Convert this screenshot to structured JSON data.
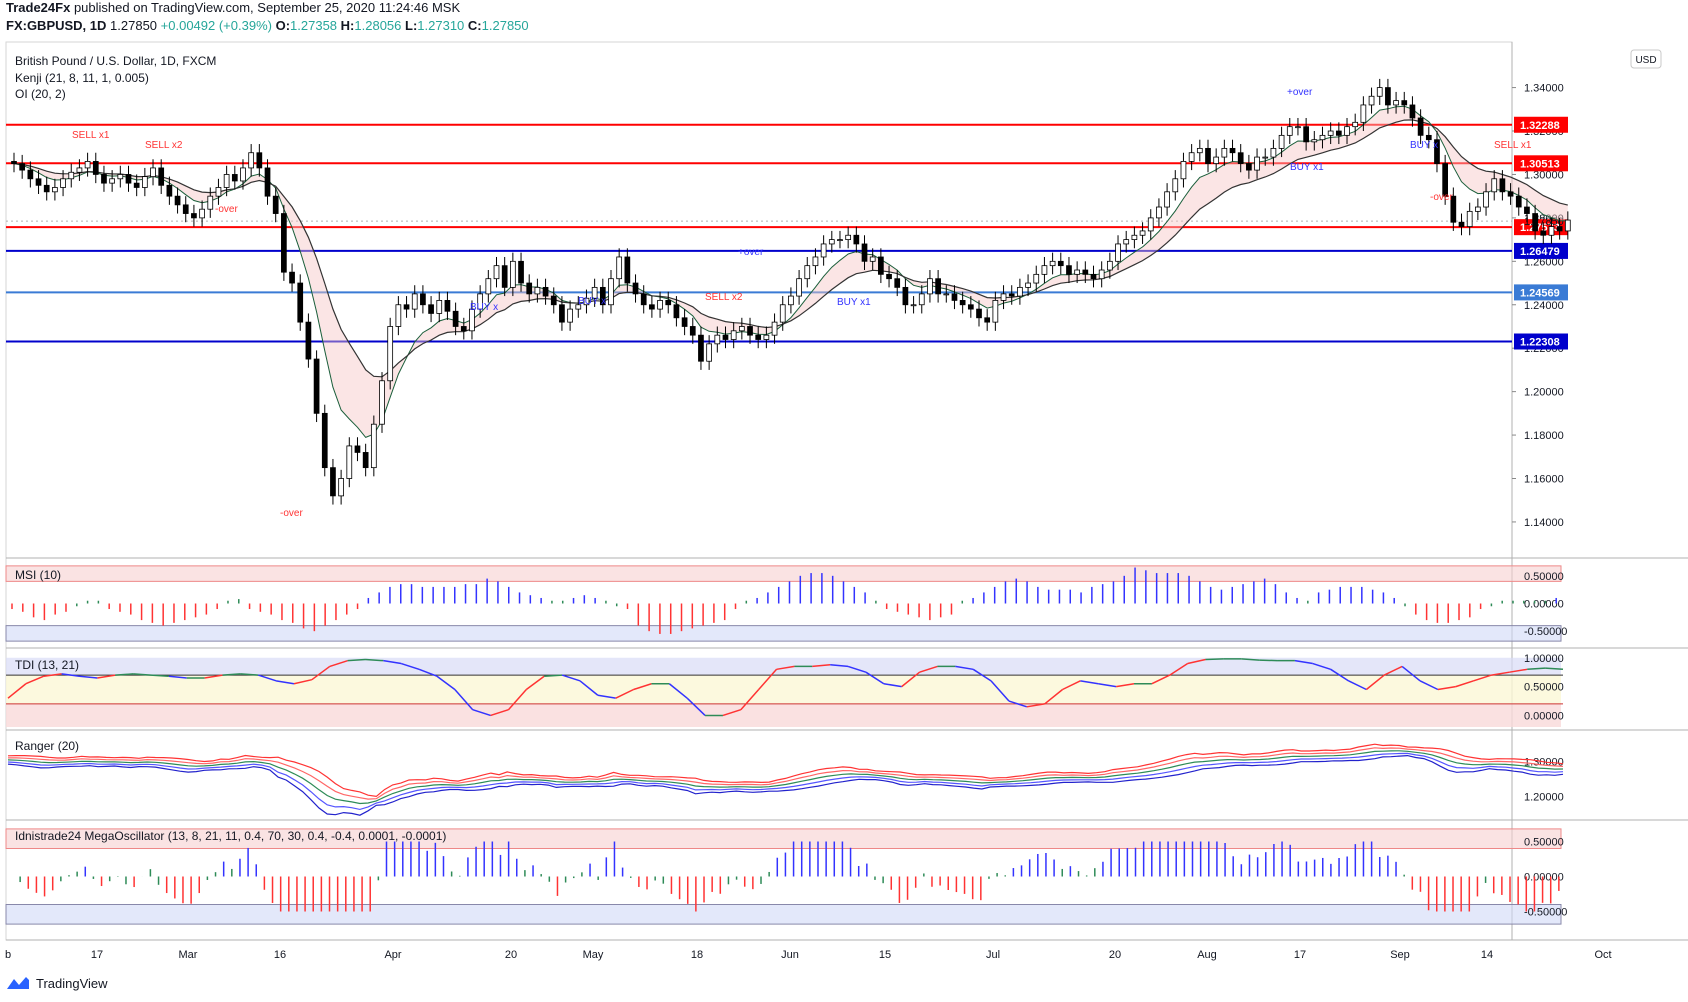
{
  "header": {
    "publisher": "Trade24Fx",
    "published_text": "published on TradingView.com, September 25, 2020 11:24:46 MSK",
    "symbol": "FX:GBPUSD, 1D",
    "last": "1.27850",
    "change": "+0.00492 (+0.39%)",
    "o_label": "O:",
    "o": "1.27358",
    "h_label": "H:",
    "h": "1.28056",
    "l_label": "L:",
    "l": "1.27310",
    "c_label": "C:",
    "c": "1.27850"
  },
  "legend": {
    "title": "British Pound / U.S. Dollar, 1D, FXCM",
    "kenji": "Kenji (21, 8, 11, 1, 0.005)",
    "oi": "OI (20, 2)"
  },
  "currency_badge": "USD",
  "footer": {
    "brand": "TradingView"
  },
  "colors": {
    "up": "#ffffff",
    "down": "#000000",
    "red_line": "#ff0000",
    "blue_line": "#0000cc",
    "light_blue_line": "#3a7bd5",
    "buy_marker": "#3333ff",
    "sell_marker": "#ff3333"
  },
  "chart_data": [
    {
      "type": "candlestick",
      "title": "British Pound / U.S. Dollar, 1D, FXCM",
      "x_ticks": [
        "b",
        "17",
        "Mar",
        "16",
        "Apr",
        "20",
        "May",
        "18",
        "Jun",
        "15",
        "Jul",
        "20",
        "Aug",
        "17",
        "Sep",
        "14",
        "Oct"
      ],
      "y_ticks": [
        "1.34000",
        "1.32000",
        "1.30000",
        "1.28000",
        "1.26000",
        "1.24000",
        "1.22000",
        "1.20000",
        "1.18000",
        "1.16000",
        "1.14000"
      ],
      "ylim": [
        1.128,
        1.355
      ],
      "levels": [
        {
          "value": 1.32288,
          "label": "1.32288",
          "color": "#ff0000"
        },
        {
          "value": 1.30513,
          "label": "1.30513",
          "color": "#ff0000"
        },
        {
          "value": 1.27573,
          "label": "1.27573",
          "color": "#ff0000"
        },
        {
          "value": 1.26479,
          "label": "1.26479",
          "color": "#0000cc"
        },
        {
          "value": 1.24569,
          "label": "1.24569",
          "color": "#3a7bd5"
        },
        {
          "value": 1.22308,
          "label": "1.22308",
          "color": "#0000cc"
        }
      ],
      "last_price_label": "1.27850",
      "close": [
        1.305,
        1.302,
        1.298,
        1.295,
        1.292,
        1.294,
        1.298,
        1.301,
        1.303,
        1.306,
        1.3,
        1.296,
        1.298,
        1.3,
        1.296,
        1.294,
        1.299,
        1.303,
        1.295,
        1.29,
        1.286,
        1.282,
        1.28,
        1.284,
        1.29,
        1.294,
        1.3,
        1.297,
        1.303,
        1.31,
        1.303,
        1.29,
        1.282,
        1.255,
        1.25,
        1.232,
        1.215,
        1.19,
        1.165,
        1.152,
        1.16,
        1.175,
        1.172,
        1.165,
        1.185,
        1.205,
        1.23,
        1.24,
        1.238,
        1.245,
        1.24,
        1.236,
        1.242,
        1.237,
        1.23,
        1.228,
        1.238,
        1.245,
        1.252,
        1.258,
        1.248,
        1.26,
        1.25,
        1.245,
        1.248,
        1.244,
        1.24,
        1.232,
        1.238,
        1.24,
        1.243,
        1.248,
        1.24,
        1.252,
        1.262,
        1.25,
        1.245,
        1.24,
        1.238,
        1.242,
        1.24,
        1.234,
        1.23,
        1.226,
        1.214,
        1.222,
        1.226,
        1.224,
        1.228,
        1.23,
        1.226,
        1.224,
        1.226,
        1.232,
        1.24,
        1.244,
        1.252,
        1.258,
        1.262,
        1.268,
        1.27,
        1.27,
        1.272,
        1.268,
        1.26,
        1.262,
        1.254,
        1.252,
        1.248,
        1.24,
        1.24,
        1.245,
        1.252,
        1.245,
        1.245,
        1.242,
        1.24,
        1.238,
        1.234,
        1.232,
        1.242,
        1.245,
        1.244,
        1.248,
        1.25,
        1.254,
        1.258,
        1.26,
        1.258,
        1.254,
        1.256,
        1.254,
        1.252,
        1.256,
        1.26,
        1.268,
        1.27,
        1.272,
        1.274,
        1.28,
        1.285,
        1.292,
        1.298,
        1.306,
        1.31,
        1.312,
        1.305,
        1.308,
        1.312,
        1.31,
        1.305,
        1.302,
        1.308,
        1.308,
        1.312,
        1.318,
        1.322,
        1.322,
        1.315,
        1.316,
        1.318,
        1.32,
        1.318,
        1.322,
        1.324,
        1.332,
        1.336,
        1.34,
        1.332,
        1.334,
        1.332,
        1.326,
        1.318,
        1.316,
        1.305,
        1.29,
        1.278,
        1.276,
        1.283,
        1.285,
        1.292,
        1.298,
        1.292,
        1.29,
        1.285,
        1.282,
        1.274,
        1.272,
        1.276,
        1.274,
        1.279
      ],
      "open": [
        1.306,
        1.305,
        1.302,
        1.298,
        1.295,
        1.292,
        1.294,
        1.298,
        1.301,
        1.303,
        1.306,
        1.3,
        1.296,
        1.298,
        1.3,
        1.296,
        1.294,
        1.299,
        1.303,
        1.295,
        1.29,
        1.286,
        1.282,
        1.28,
        1.284,
        1.29,
        1.294,
        1.3,
        1.297,
        1.303,
        1.31,
        1.303,
        1.29,
        1.282,
        1.255,
        1.25,
        1.232,
        1.215,
        1.19,
        1.165,
        1.152,
        1.16,
        1.175,
        1.172,
        1.165,
        1.185,
        1.205,
        1.23,
        1.24,
        1.238,
        1.245,
        1.24,
        1.236,
        1.242,
        1.237,
        1.23,
        1.228,
        1.238,
        1.245,
        1.252,
        1.258,
        1.248,
        1.26,
        1.25,
        1.245,
        1.248,
        1.244,
        1.24,
        1.232,
        1.238,
        1.24,
        1.243,
        1.248,
        1.24,
        1.252,
        1.262,
        1.25,
        1.245,
        1.24,
        1.238,
        1.242,
        1.24,
        1.234,
        1.23,
        1.226,
        1.214,
        1.222,
        1.226,
        1.224,
        1.228,
        1.23,
        1.226,
        1.224,
        1.226,
        1.232,
        1.24,
        1.244,
        1.252,
        1.258,
        1.262,
        1.268,
        1.27,
        1.27,
        1.272,
        1.268,
        1.26,
        1.262,
        1.254,
        1.252,
        1.248,
        1.24,
        1.24,
        1.245,
        1.252,
        1.245,
        1.245,
        1.242,
        1.24,
        1.238,
        1.234,
        1.232,
        1.242,
        1.245,
        1.244,
        1.248,
        1.25,
        1.254,
        1.258,
        1.26,
        1.258,
        1.254,
        1.256,
        1.254,
        1.252,
        1.256,
        1.26,
        1.268,
        1.27,
        1.272,
        1.274,
        1.28,
        1.285,
        1.292,
        1.298,
        1.306,
        1.31,
        1.312,
        1.305,
        1.308,
        1.312,
        1.31,
        1.305,
        1.302,
        1.308,
        1.308,
        1.312,
        1.318,
        1.322,
        1.322,
        1.315,
        1.316,
        1.318,
        1.32,
        1.318,
        1.322,
        1.324,
        1.332,
        1.336,
        1.34,
        1.332,
        1.334,
        1.332,
        1.326,
        1.318,
        1.316,
        1.305,
        1.29,
        1.278,
        1.276,
        1.283,
        1.285,
        1.292,
        1.298,
        1.292,
        1.29,
        1.285,
        1.282,
        1.274,
        1.272,
        1.276,
        1.274
      ]
    },
    {
      "type": "bar",
      "title": "MSI (10)",
      "y_ticks": [
        "0.50000",
        "0.00000",
        "-0.50000"
      ],
      "ylim": [
        -0.75,
        0.75
      ],
      "values": [
        -0.1,
        -0.15,
        -0.25,
        -0.3,
        -0.2,
        -0.15,
        -0.05,
        0.05,
        0.05,
        -0.1,
        -0.15,
        -0.2,
        -0.3,
        -0.35,
        -0.4,
        -0.35,
        -0.3,
        -0.25,
        -0.2,
        -0.1,
        0.05,
        0.08,
        -0.1,
        -0.15,
        -0.2,
        -0.3,
        -0.35,
        -0.45,
        -0.5,
        -0.4,
        -0.3,
        -0.2,
        -0.1,
        0.1,
        0.2,
        0.3,
        0.35,
        0.35,
        0.3,
        0.3,
        0.3,
        0.3,
        0.35,
        0.35,
        0.45,
        0.4,
        0.3,
        0.2,
        0.15,
        0.1,
        0.05,
        0.05,
        0.1,
        0.15,
        0.1,
        0.05,
        -0.05,
        -0.1,
        -0.4,
        -0.5,
        -0.55,
        -0.55,
        -0.5,
        -0.45,
        -0.4,
        -0.35,
        -0.3,
        -0.1,
        0.05,
        0.1,
        0.2,
        0.3,
        0.4,
        0.5,
        0.55,
        0.55,
        0.5,
        0.4,
        0.3,
        0.2,
        0.05,
        -0.1,
        -0.15,
        -0.2,
        -0.25,
        -0.3,
        -0.25,
        -0.2,
        0.05,
        0.1,
        0.2,
        0.3,
        0.4,
        0.45,
        0.4,
        0.3,
        0.25,
        0.25,
        0.25,
        0.2,
        0.3,
        0.35,
        0.4,
        0.5,
        0.65,
        0.6,
        0.55,
        0.55,
        0.55,
        0.5,
        0.4,
        0.3,
        0.25,
        0.3,
        0.35,
        0.4,
        0.45,
        0.35,
        0.2,
        0.1,
        0.05,
        0.2,
        0.25,
        0.3,
        0.3,
        0.3,
        0.25,
        0.2,
        0.1,
        -0.05,
        -0.2,
        -0.3,
        -0.35,
        -0.35,
        -0.3,
        -0.25,
        -0.1,
        -0.05,
        0.05,
        0.05,
        0.05,
        0.05,
        0.05,
        0.1
      ]
    },
    {
      "type": "line",
      "title": "TDI (13, 21)",
      "y_ticks": [
        "1.00000",
        "0.50000",
        "0.00000"
      ],
      "ylim": [
        -0.2,
        1.1
      ],
      "series": [
        {
          "values": [
            0.3,
            0.55,
            0.68,
            0.72,
            0.68,
            0.65,
            0.7,
            0.72,
            0.7,
            0.68,
            0.65,
            0.65,
            0.7,
            0.72,
            0.7,
            0.6,
            0.55,
            0.62,
            0.85,
            0.95,
            0.97,
            0.95,
            0.9,
            0.8,
            0.68,
            0.45,
            0.1,
            0.0,
            0.1,
            0.45,
            0.68,
            0.7,
            0.6,
            0.35,
            0.3,
            0.45,
            0.55,
            0.55,
            0.3,
            0.0,
            0.0,
            0.1,
            0.45,
            0.8,
            0.85,
            0.85,
            0.88,
            0.85,
            0.75,
            0.55,
            0.5,
            0.75,
            0.85,
            0.85,
            0.8,
            0.6,
            0.25,
            0.15,
            0.2,
            0.45,
            0.6,
            0.55,
            0.5,
            0.55,
            0.55,
            0.7,
            0.9,
            0.97,
            0.98,
            0.98,
            0.96,
            0.95,
            0.95,
            0.9,
            0.8,
            0.6,
            0.45,
            0.7,
            0.85,
            0.6,
            0.45,
            0.5,
            0.6,
            0.7,
            0.75,
            0.8,
            0.82,
            0.8
          ]
        }
      ]
    },
    {
      "type": "line",
      "title": "Ranger (20)",
      "y_ticks": [
        "1.30000",
        "1.20000"
      ],
      "ylim": [
        1.14,
        1.38
      ]
    },
    {
      "type": "bar",
      "title": "Idnistrade24 MegaOscillator (13, 8, 21, 11, 0.4, 70, 30, 0.4, -0.4, 0.0001, -0.0001)",
      "y_ticks": [
        "0.50000",
        "0.00000",
        "-0.50000"
      ],
      "ylim": [
        -0.75,
        0.75
      ]
    }
  ],
  "annotations": {
    "sell_x1": "SELL x1",
    "sell_x2": "SELL x2",
    "buy_x": "BUY x",
    "buy_x1": "BUY x1",
    "over_plus": "+over",
    "over_minus": "-over"
  }
}
